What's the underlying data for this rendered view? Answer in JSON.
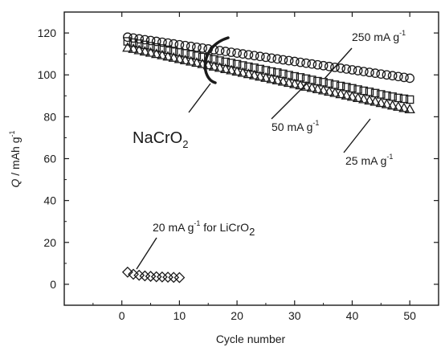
{
  "chart_data": {
    "type": "scatter",
    "xlabel": "Cycle number",
    "ylabel": {
      "italic": "Q",
      "rest": " / mAh g",
      "sup": "-1"
    },
    "xlim": [
      -10,
      55
    ],
    "ylim": [
      -10,
      130
    ],
    "x_ticks": [
      0,
      10,
      20,
      30,
      40,
      50
    ],
    "y_ticks": [
      0,
      20,
      40,
      60,
      80,
      100,
      120
    ],
    "grid": false,
    "series": [
      {
        "key": "s250",
        "marker": "circle",
        "color": "#1a1a1a",
        "x": [
          1,
          2,
          3,
          4,
          5,
          6,
          7,
          8,
          9,
          10,
          11,
          12,
          13,
          14,
          15,
          16,
          17,
          18,
          19,
          20,
          21,
          22,
          23,
          24,
          25,
          26,
          27,
          28,
          29,
          30,
          31,
          32,
          33,
          34,
          35,
          36,
          37,
          38,
          39,
          40,
          41,
          42,
          43,
          44,
          45,
          46,
          47,
          48,
          49,
          50
        ],
        "y": [
          118.0,
          117.6,
          117.2,
          116.8,
          116.4,
          116.0,
          115.6,
          115.2,
          114.8,
          114.4,
          114.0,
          113.6,
          113.2,
          112.8,
          112.4,
          112.0,
          111.6,
          111.2,
          110.8,
          110.4,
          110.0,
          109.6,
          109.2,
          108.8,
          108.4,
          108.0,
          107.6,
          107.2,
          106.8,
          106.4,
          106.0,
          105.6,
          105.2,
          104.8,
          104.4,
          104.0,
          103.6,
          103.2,
          102.8,
          102.4,
          102.0,
          101.6,
          101.2,
          100.8,
          100.4,
          100.0,
          99.6,
          99.2,
          98.8,
          98.4
        ]
      },
      {
        "key": "s50",
        "marker": "square",
        "color": "#1a1a1a",
        "x": [
          1,
          2,
          3,
          4,
          5,
          6,
          7,
          8,
          9,
          10,
          11,
          12,
          13,
          14,
          15,
          16,
          17,
          18,
          19,
          20,
          21,
          22,
          23,
          24,
          25,
          26,
          27,
          28,
          29,
          30,
          31,
          32,
          33,
          34,
          35,
          36,
          37,
          38,
          39,
          40,
          41,
          42,
          43,
          44,
          45,
          46,
          47,
          48,
          49,
          50
        ],
        "y": [
          116.0,
          115.4,
          114.9,
          114.3,
          113.7,
          113.1,
          112.6,
          112.0,
          111.4,
          110.8,
          110.3,
          109.7,
          109.1,
          108.5,
          108.0,
          107.4,
          106.8,
          106.2,
          105.7,
          105.1,
          104.5,
          103.9,
          103.4,
          102.8,
          102.2,
          101.6,
          101.1,
          100.5,
          99.9,
          99.3,
          98.8,
          98.2,
          97.6,
          97.0,
          96.5,
          95.9,
          95.3,
          94.7,
          94.2,
          93.6,
          93.0,
          92.4,
          91.9,
          91.3,
          90.7,
          90.1,
          89.6,
          89.0,
          88.6,
          88.2
        ]
      },
      {
        "key": "s25",
        "marker": "triangle",
        "color": "#1a1a1a",
        "x": [
          1,
          2,
          3,
          4,
          5,
          6,
          7,
          8,
          9,
          10,
          11,
          12,
          13,
          14,
          15,
          16,
          17,
          18,
          19,
          20,
          21,
          22,
          23,
          24,
          25,
          26,
          27,
          28,
          29,
          30,
          31,
          32,
          33,
          34,
          35,
          36,
          37,
          38,
          39,
          40,
          41,
          42,
          43,
          44,
          45,
          46,
          47,
          48,
          49,
          50
        ],
        "y": [
          113.0,
          112.4,
          111.8,
          111.2,
          110.6,
          110.0,
          109.4,
          108.8,
          108.2,
          107.6,
          107.0,
          106.4,
          105.8,
          105.2,
          104.6,
          104.0,
          103.4,
          102.8,
          102.2,
          101.6,
          101.0,
          100.4,
          99.8,
          99.2,
          98.6,
          98.0,
          97.4,
          96.8,
          96.2,
          95.6,
          95.0,
          94.4,
          93.8,
          93.2,
          92.6,
          92.0,
          91.4,
          90.8,
          90.2,
          89.6,
          89.0,
          88.4,
          87.8,
          87.2,
          86.6,
          86.0,
          85.4,
          84.8,
          84.2,
          83.6
        ]
      },
      {
        "key": "s20li",
        "marker": "diamond",
        "color": "#1a1a1a",
        "x": [
          1,
          2,
          3,
          4,
          5,
          6,
          7,
          8,
          9,
          10
        ],
        "y": [
          5.8,
          4.8,
          4.3,
          4.0,
          3.8,
          3.6,
          3.5,
          3.4,
          3.3,
          3.2
        ]
      }
    ],
    "annotations": [
      {
        "key": "a250",
        "main": "250 mA g",
        "sup": "-1",
        "tail": "",
        "sub": ""
      },
      {
        "key": "a50",
        "main": "50 mA g",
        "sup": "-1",
        "tail": "",
        "sub": ""
      },
      {
        "key": "a25",
        "main": "25 mA g",
        "sup": "-1",
        "tail": "",
        "sub": ""
      },
      {
        "key": "aLi",
        "main": "20 mA g",
        "sup": "-1",
        "tail": " for LiCrO",
        "sub": "2"
      },
      {
        "key": "aNa",
        "main": "NaCrO",
        "sup": "",
        "tail": "",
        "sub": "2"
      }
    ]
  }
}
